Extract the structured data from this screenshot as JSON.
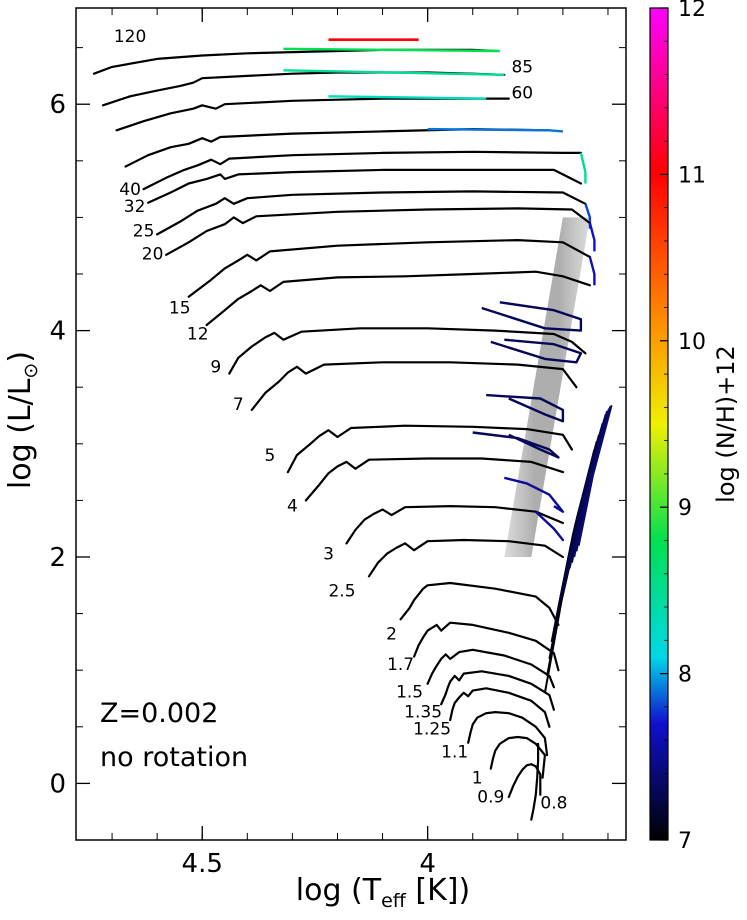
{
  "chart_data": {
    "type": "line",
    "title": "",
    "xlabel": "log (T",
    "xlabel_sub": "eff",
    "xlabel_unit": " [K])",
    "ylabel": "log (L/L",
    "ylabel_sub": "⊙",
    "ylabel_close": ")",
    "xlim": [
      4.78,
      3.56
    ],
    "ylim": [
      -0.5,
      6.85
    ],
    "x_ticks": [
      4.5,
      4.0
    ],
    "x_tick_labels": [
      "4.5",
      "4"
    ],
    "y_ticks": [
      0,
      2,
      4,
      6
    ],
    "y_tick_labels": [
      "0",
      "2",
      "4",
      "6"
    ],
    "annotations": [
      "Z=0.002",
      "no rotation"
    ],
    "colorbar": {
      "label": "log (N/H)+12",
      "min": 7,
      "max": 12,
      "ticks": [
        7,
        8,
        9,
        10,
        11,
        12
      ],
      "tick_labels": [
        "7",
        "8",
        "9",
        "10",
        "11",
        "12"
      ],
      "colors": [
        "#000000",
        "#1010d0",
        "#00d8e8",
        "#00e050",
        "#f0f000",
        "#ff8000",
        "#ff0000",
        "#ff00ff"
      ]
    },
    "series": [
      {
        "mass_label": "120",
        "label_x": 4.66,
        "label_y": 6.55,
        "x": [
          4.74,
          4.7,
          4.6,
          4.5,
          4.4,
          4.3,
          4.2,
          4.1,
          4.0,
          3.9,
          3.85
        ],
        "y": [
          6.27,
          6.33,
          6.4,
          6.43,
          6.45,
          6.46,
          6.47,
          6.48,
          6.48,
          6.48,
          6.47
        ],
        "nh_x": [
          4.32,
          3.84
        ],
        "nh_y": [
          6.49,
          6.47
        ],
        "nh": 8.8,
        "nh2_x": [
          4.22,
          4.02
        ],
        "nh2_y": [
          6.57,
          6.57
        ],
        "nh2": 11.0
      },
      {
        "mass_label": "85",
        "label_x": 3.79,
        "label_y": 6.28,
        "x": [
          4.72,
          4.66,
          4.6,
          4.55,
          4.52,
          4.5,
          4.4,
          4.3,
          4.2,
          4.1,
          4.0,
          3.9,
          3.83
        ],
        "y": [
          5.99,
          6.07,
          6.12,
          6.16,
          6.19,
          6.23,
          6.25,
          6.27,
          6.28,
          6.28,
          6.28,
          6.27,
          6.26
        ],
        "nh_x": [
          4.32,
          3.83
        ],
        "nh_y": [
          6.3,
          6.26
        ],
        "nh": 8.5
      },
      {
        "mass_label": "60",
        "label_x": 3.79,
        "label_y": 6.05,
        "x": [
          4.69,
          4.63,
          4.57,
          4.52,
          4.5,
          4.47,
          4.45,
          4.3,
          4.2,
          4.1,
          4.0,
          3.9,
          3.82
        ],
        "y": [
          5.77,
          5.85,
          5.92,
          5.96,
          5.99,
          5.96,
          6.0,
          6.03,
          6.04,
          6.05,
          6.05,
          6.05,
          6.05
        ],
        "nh_x": [
          4.22,
          3.87
        ],
        "nh_y": [
          6.07,
          6.05
        ],
        "nh": 8.3
      },
      {
        "mass_label": "",
        "label_x": 0,
        "label_y": 0,
        "x": [
          4.67,
          4.62,
          4.57,
          4.53,
          4.5,
          4.48,
          4.46,
          4.3,
          4.1,
          3.9,
          3.73
        ],
        "y": [
          5.45,
          5.55,
          5.62,
          5.65,
          5.7,
          5.67,
          5.71,
          5.74,
          5.76,
          5.78,
          5.77
        ],
        "nh_x": [
          4.0,
          3.73,
          3.7
        ],
        "nh_y": [
          5.78,
          5.77,
          5.76
        ],
        "nh": 7.9
      },
      {
        "mass_label": "40",
        "label_x": 4.66,
        "label_y": 5.2,
        "x": [
          4.63,
          4.58,
          4.54,
          4.51,
          4.48,
          4.46,
          4.44,
          4.3,
          4.1,
          3.9,
          3.7,
          3.66
        ],
        "y": [
          5.25,
          5.35,
          5.42,
          5.46,
          5.51,
          5.47,
          5.52,
          5.55,
          5.57,
          5.58,
          5.57,
          5.57
        ],
        "nh_x": [
          3.66,
          3.65,
          3.65
        ],
        "nh_y": [
          5.57,
          5.4,
          5.3
        ],
        "nh": 8.5
      },
      {
        "mass_label": "32",
        "label_x": 4.65,
        "label_y": 5.05,
        "x": [
          4.62,
          4.57,
          4.53,
          4.49,
          4.46,
          4.45,
          4.42,
          4.3,
          4.1,
          3.9,
          3.72,
          3.66
        ],
        "y": [
          5.13,
          5.22,
          5.3,
          5.34,
          5.38,
          5.34,
          5.38,
          5.4,
          5.42,
          5.42,
          5.42,
          5.3
        ],
        "nh_x": [],
        "nh_y": [],
        "nh": 7
      },
      {
        "mass_label": "25",
        "label_x": 4.63,
        "label_y": 4.83,
        "x": [
          4.6,
          4.55,
          4.51,
          4.47,
          4.45,
          4.43,
          4.4,
          4.3,
          4.1,
          3.9,
          3.7,
          3.65
        ],
        "y": [
          4.85,
          4.96,
          5.06,
          5.12,
          5.17,
          5.12,
          5.17,
          5.2,
          5.22,
          5.23,
          5.22,
          5.12
        ],
        "nh_x": [
          3.65,
          3.64,
          3.64
        ],
        "nh_y": [
          5.12,
          5.0,
          4.9
        ],
        "nh": 7.8
      },
      {
        "mass_label": "20",
        "label_x": 4.61,
        "label_y": 4.63,
        "x": [
          4.58,
          4.53,
          4.49,
          4.45,
          4.43,
          4.41,
          4.38,
          4.2,
          4.0,
          3.8,
          3.68,
          3.64
        ],
        "y": [
          4.67,
          4.78,
          4.88,
          4.94,
          5.0,
          4.95,
          5.01,
          5.05,
          5.07,
          5.08,
          5.07,
          4.95
        ],
        "nh_x": [
          3.64,
          3.63,
          3.63
        ],
        "nh_y": [
          4.95,
          4.8,
          4.7
        ],
        "nh": 7.7
      },
      {
        "mass_label": "15",
        "label_x": 4.55,
        "label_y": 4.15,
        "x": [
          4.53,
          4.48,
          4.45,
          4.42,
          4.4,
          4.38,
          4.35,
          4.2,
          4.0,
          3.8,
          3.7,
          3.64
        ],
        "y": [
          4.3,
          4.45,
          4.55,
          4.62,
          4.67,
          4.62,
          4.7,
          4.75,
          4.78,
          4.8,
          4.78,
          4.65
        ],
        "nh_x": [
          3.64,
          3.63,
          3.63
        ],
        "nh_y": [
          4.65,
          4.5,
          4.4
        ],
        "nh": 7.6
      },
      {
        "mass_label": "12",
        "label_x": 4.51,
        "label_y": 3.92,
        "x": [
          4.49,
          4.45,
          4.42,
          4.39,
          4.37,
          4.35,
          4.32,
          4.2,
          4.05,
          3.9,
          3.76,
          3.7,
          3.64
        ],
        "y": [
          4.05,
          4.18,
          4.28,
          4.35,
          4.4,
          4.35,
          4.43,
          4.47,
          4.48,
          4.5,
          4.52,
          4.48,
          4.4
        ],
        "nh_x": [],
        "nh_y": [],
        "nh": 7
      },
      {
        "mass_label": "9",
        "label_x": 4.47,
        "label_y": 3.63,
        "x": [
          4.44,
          4.42,
          4.39,
          4.36,
          4.34,
          4.32,
          4.28,
          4.15,
          4.0,
          3.85,
          3.72,
          3.68,
          3.65
        ],
        "y": [
          3.62,
          3.76,
          3.86,
          3.94,
          3.98,
          3.92,
          3.99,
          4.02,
          4.02,
          4.0,
          3.97,
          3.9,
          3.8
        ],
        "nh_x": [
          3.84,
          3.72,
          3.66,
          3.66,
          3.74,
          3.88
        ],
        "nh_y": [
          4.25,
          4.18,
          4.1,
          4.0,
          4.02,
          4.2
        ],
        "nh": 7.3
      },
      {
        "mass_label": "7",
        "label_x": 4.42,
        "label_y": 3.3,
        "x": [
          4.39,
          4.36,
          4.33,
          4.31,
          4.29,
          4.27,
          4.23,
          4.1,
          3.95,
          3.8,
          3.7,
          3.67
        ],
        "y": [
          3.3,
          3.45,
          3.55,
          3.63,
          3.68,
          3.62,
          3.7,
          3.72,
          3.72,
          3.7,
          3.66,
          3.5
        ],
        "nh_x": [
          3.83,
          3.72,
          3.66,
          3.67,
          3.74,
          3.86
        ],
        "nh_y": [
          3.92,
          3.88,
          3.8,
          3.72,
          3.75,
          3.9
        ],
        "nh": 7.3
      },
      {
        "mass_label": "5",
        "label_x": 4.35,
        "label_y": 2.85,
        "x": [
          4.31,
          4.29,
          4.26,
          4.24,
          4.22,
          4.2,
          4.17,
          4.05,
          3.9,
          3.78,
          3.7,
          3.68
        ],
        "y": [
          2.75,
          2.9,
          3.0,
          3.07,
          3.12,
          3.06,
          3.14,
          3.16,
          3.15,
          3.13,
          3.08,
          2.95
        ],
        "nh_x": [
          3.87,
          3.75,
          3.7,
          3.7,
          3.74,
          3.82
        ],
        "nh_y": [
          3.43,
          3.4,
          3.3,
          3.2,
          3.26,
          3.4
        ],
        "nh": 7.3
      },
      {
        "mass_label": "4",
        "label_x": 4.3,
        "label_y": 2.4,
        "x": [
          4.27,
          4.24,
          4.22,
          4.2,
          4.18,
          4.16,
          4.13,
          4.0,
          3.88,
          3.77,
          3.7
        ],
        "y": [
          2.5,
          2.64,
          2.74,
          2.8,
          2.84,
          2.78,
          2.86,
          2.87,
          2.87,
          2.84,
          2.75
        ],
        "nh_x": [
          3.9,
          3.8,
          3.73,
          3.71,
          3.75,
          3.82
        ],
        "nh_y": [
          3.1,
          3.05,
          2.95,
          2.88,
          2.95,
          3.08
        ],
        "nh": 7.3
      },
      {
        "mass_label": "3",
        "label_x": 4.22,
        "label_y": 1.98,
        "x": [
          4.18,
          4.16,
          4.14,
          4.12,
          4.1,
          4.08,
          4.05,
          3.95,
          3.85,
          3.76,
          3.7
        ],
        "y": [
          2.12,
          2.24,
          2.33,
          2.38,
          2.42,
          2.37,
          2.44,
          2.45,
          2.44,
          2.4,
          2.3
        ],
        "nh_x": [
          3.83,
          3.78,
          3.73,
          3.7,
          3.72
        ],
        "nh_y": [
          2.7,
          2.65,
          2.55,
          2.4,
          2.45
        ],
        "nh": 7.5
      },
      {
        "mass_label": "2.5",
        "label_x": 4.19,
        "label_y": 1.65,
        "x": [
          4.13,
          4.11,
          4.09,
          4.07,
          4.05,
          4.03,
          4.0,
          3.92,
          3.82,
          3.74,
          3.7
        ],
        "y": [
          1.83,
          1.95,
          2.03,
          2.08,
          2.12,
          2.06,
          2.14,
          2.15,
          2.14,
          2.1,
          2.0
        ],
        "nh_x": [
          3.76,
          3.72,
          3.7,
          3.71
        ],
        "nh_y": [
          2.4,
          2.25,
          2.15,
          2.2
        ],
        "nh": 7.5
      },
      {
        "mass_label": "2",
        "label_x": 4.08,
        "label_y": 1.27,
        "x": [
          4.06,
          4.04,
          4.03,
          4.02,
          4.01,
          4.0,
          3.95,
          3.85,
          3.76,
          3.73,
          3.71
        ],
        "y": [
          1.45,
          1.55,
          1.62,
          1.67,
          1.72,
          1.75,
          1.77,
          1.72,
          1.65,
          1.55,
          1.4
        ],
        "nh_x": [],
        "nh_y": [],
        "nh": 7
      },
      {
        "mass_label": "1.7",
        "label_x": 4.06,
        "label_y": 1.0,
        "x": [
          4.03,
          4.02,
          4.01,
          4.0,
          3.98,
          3.97,
          3.95,
          3.9,
          3.82,
          3.76,
          3.72,
          3.71
        ],
        "y": [
          1.12,
          1.22,
          1.29,
          1.35,
          1.4,
          1.35,
          1.42,
          1.4,
          1.33,
          1.26,
          1.15,
          1.0
        ],
        "nh_x": [],
        "nh_y": [],
        "nh": 7
      },
      {
        "mass_label": "1.5",
        "label_x": 4.04,
        "label_y": 0.76,
        "x": [
          4.0,
          3.99,
          3.98,
          3.97,
          3.96,
          3.95,
          3.93,
          3.9,
          3.83,
          3.77,
          3.73,
          3.72
        ],
        "y": [
          0.88,
          0.97,
          1.04,
          1.1,
          1.14,
          1.1,
          1.16,
          1.18,
          1.13,
          1.05,
          0.95,
          0.85
        ],
        "nh_x": [],
        "nh_y": [],
        "nh": 7
      },
      {
        "mass_label": "1.35",
        "label_x": 4.01,
        "label_y": 0.58,
        "x": [
          3.97,
          3.96,
          3.955,
          3.95,
          3.94,
          3.93,
          3.92,
          3.88,
          3.82,
          3.77,
          3.73,
          3.72
        ],
        "y": [
          0.7,
          0.79,
          0.85,
          0.9,
          0.95,
          0.91,
          0.97,
          0.99,
          0.95,
          0.88,
          0.78,
          0.65
        ],
        "nh_x": [],
        "nh_y": [],
        "nh": 7
      },
      {
        "mass_label": "1.25",
        "label_x": 3.99,
        "label_y": 0.43,
        "x": [
          3.95,
          3.945,
          3.94,
          3.93,
          3.92,
          3.91,
          3.9,
          3.87,
          3.82,
          3.77,
          3.74,
          3.73
        ],
        "y": [
          0.56,
          0.65,
          0.71,
          0.76,
          0.8,
          0.77,
          0.82,
          0.84,
          0.8,
          0.73,
          0.63,
          0.5
        ],
        "nh_x": [],
        "nh_y": [],
        "nh": 7
      },
      {
        "mass_label": "1.1",
        "label_x": 3.94,
        "label_y": 0.23,
        "x": [
          3.91,
          3.905,
          3.9,
          3.89,
          3.87,
          3.85,
          3.82,
          3.79,
          3.76,
          3.74,
          3.735
        ],
        "y": [
          0.36,
          0.45,
          0.52,
          0.58,
          0.62,
          0.63,
          0.62,
          0.58,
          0.5,
          0.4,
          0.25
        ],
        "nh_x": [],
        "nh_y": [],
        "nh": 7
      },
      {
        "mass_label": "1",
        "label_x": 3.89,
        "label_y": 0.0,
        "x": [
          3.86,
          3.855,
          3.85,
          3.84,
          3.82,
          3.8,
          3.78,
          3.76,
          3.74,
          3.745
        ],
        "y": [
          0.13,
          0.22,
          0.29,
          0.35,
          0.4,
          0.41,
          0.4,
          0.35,
          0.25,
          0.05
        ],
        "nh_x": [],
        "nh_y": [],
        "nh": 7
      },
      {
        "mass_label": "0.9",
        "label_x": 3.86,
        "label_y": -0.17,
        "x": [
          3.82,
          3.81,
          3.8,
          3.79,
          3.78,
          3.77,
          3.76,
          3.75,
          3.75
        ],
        "y": [
          -0.12,
          -0.02,
          0.06,
          0.12,
          0.16,
          0.17,
          0.15,
          0.08,
          -0.1
        ],
        "nh_x": [],
        "nh_y": [],
        "nh": 7
      },
      {
        "mass_label": "0.8",
        "label_x": 3.72,
        "label_y": -0.22,
        "x": [
          3.77,
          3.765,
          3.76,
          3.757,
          3.755,
          3.755
        ],
        "y": [
          -0.32,
          -0.22,
          -0.1,
          0.05,
          0.2,
          0.35
        ],
        "nh_x": [],
        "nh_y": [],
        "nh": 7
      }
    ],
    "giant_branches": {
      "x_base": [
        3.74,
        3.735,
        3.73,
        3.725,
        3.72,
        3.715,
        3.71,
        3.705,
        3.7,
        3.695,
        3.69,
        3.685,
        3.68,
        3.675,
        3.67,
        3.665
      ],
      "y_base": [
        0.8,
        0.95,
        1.1,
        1.25,
        1.35,
        1.45,
        1.55,
        1.65,
        1.7,
        1.78,
        1.85,
        1.9,
        1.95,
        2.0,
        2.05,
        2.1
      ],
      "x_top": [
        3.655,
        3.65,
        3.645,
        3.64,
        3.635,
        3.63,
        3.625,
        3.62,
        3.615,
        3.612,
        3.608,
        3.605,
        3.602,
        3.598,
        3.595,
        3.592
      ],
      "y_top": [
        2.45,
        2.55,
        2.65,
        2.75,
        2.85,
        2.95,
        3.02,
        3.08,
        3.13,
        3.18,
        3.22,
        3.26,
        3.29,
        3.31,
        3.33,
        3.34
      ],
      "nh_base": 7,
      "nh_top": 7.4
    },
    "instability_strip": {
      "blue_edge_bottom": 3.83,
      "red_edge_bottom": 3.77,
      "blue_edge_top": 3.7,
      "red_edge_top": 3.64,
      "y_bottom": 2.0,
      "y_top": 5.0
    }
  }
}
